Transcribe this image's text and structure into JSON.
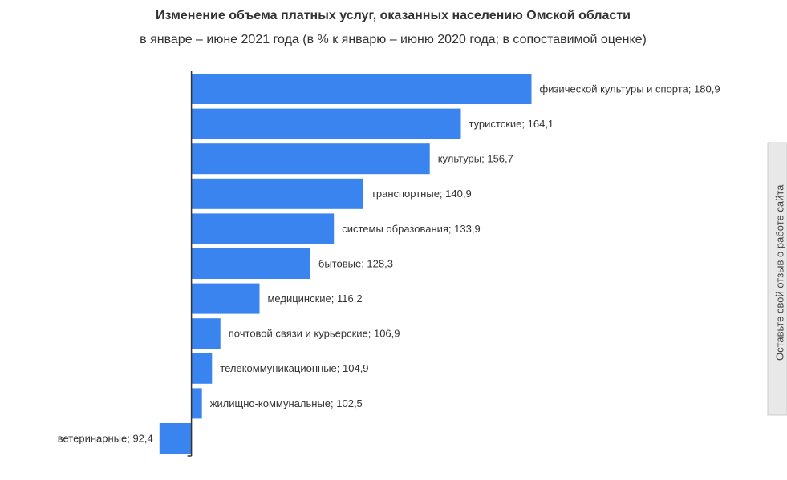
{
  "chart_data": {
    "type": "bar",
    "orientation": "horizontal",
    "title": "Изменение объема платных услуг, оказанных населению Омской области",
    "subtitle": "в январе – июне 2021 года (в % к январю – июню 2020 года; в сопоставимой оценке)",
    "values": [
      180.9,
      164.1,
      156.7,
      140.9,
      133.9,
      128.3,
      116.2,
      106.9,
      104.9,
      102.5,
      92.4
    ],
    "value_labels": [
      "физической культуры  и спорта; 180,9",
      "туристские; 164,1",
      "культуры; 156,7",
      "транспортные; 140,9",
      "системы образования; 133,9",
      "бытовые; 128,3",
      "медицинские; 116,2",
      "почтовой связи и курьерские; 106,9",
      "телекоммуникационные; 104,9",
      "жилищно-коммунальные; 102,5",
      "ветеринарные; 92,4"
    ],
    "color": "#3a84f0",
    "base_value": 100,
    "xlim": [
      85,
      185
    ]
  },
  "feedback_tab": "Оставьте свой отзыв о работе сайта"
}
